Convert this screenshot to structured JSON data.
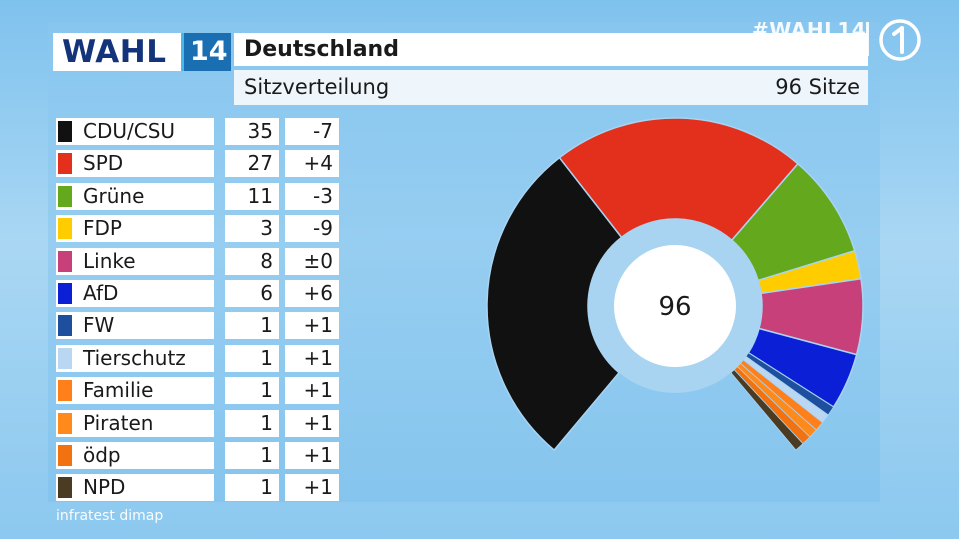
{
  "header": {
    "hashtag": "#WAHL14",
    "logo_word": "WAHL",
    "logo_year": "14",
    "title": "Deutschland",
    "subtitle": "Sitzverteilung",
    "total_label": "96 Sitze"
  },
  "source": "infratest dimap",
  "broadcaster_icon": "ard-logo-icon",
  "chart_data": {
    "type": "pie",
    "variant": "hemicycle-donut",
    "title": "Deutschland",
    "subtitle": "Sitzverteilung",
    "total": 96,
    "center_label": "96",
    "categories": [
      "CDU/CSU",
      "SPD",
      "Grüne",
      "FDP",
      "Linke",
      "AfD",
      "FW",
      "Tierschutz",
      "Familie",
      "Piraten",
      "ödp",
      "NPD"
    ],
    "values": [
      35,
      27,
      11,
      3,
      8,
      6,
      1,
      1,
      1,
      1,
      1,
      1
    ],
    "changes": [
      "-7",
      "+4",
      "-3",
      "-9",
      "±0",
      "+6",
      "+1",
      "+1",
      "+1",
      "+1",
      "+1",
      "+1"
    ],
    "colors": [
      "#111111",
      "#e3301c",
      "#64a81e",
      "#ffcc00",
      "#c8407a",
      "#0a1fd6",
      "#1d4f9e",
      "#b9d6f2",
      "#ff7f1a",
      "#ff8a1c",
      "#f2720f",
      "#4a3b22"
    ],
    "legend": "left"
  }
}
